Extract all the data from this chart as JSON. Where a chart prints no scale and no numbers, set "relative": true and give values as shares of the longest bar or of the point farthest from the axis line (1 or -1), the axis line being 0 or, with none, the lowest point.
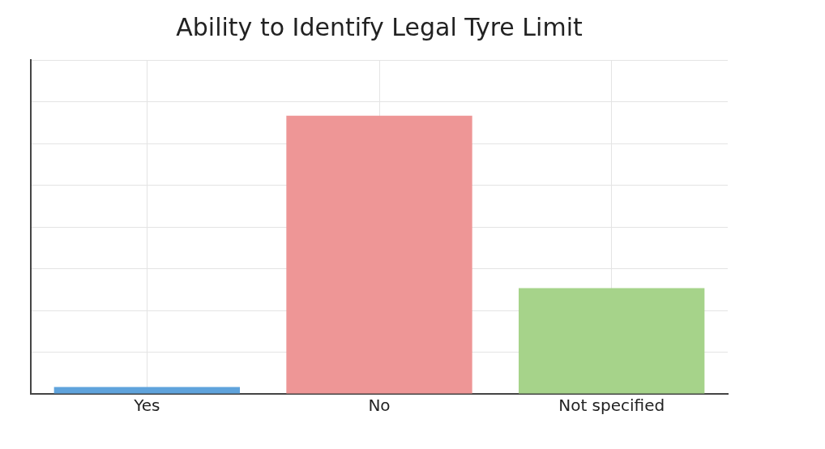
{
  "chart_data": {
    "type": "bar",
    "title": "Ability to Identify Legal Tyre Limit",
    "categories": [
      "Yes",
      "No",
      "Not specified"
    ],
    "values": [
      0.025,
      1,
      0.38
    ],
    "colors": [
      "#5fa3dc",
      "#ee9696",
      "#a6d38a"
    ],
    "relative": true,
    "grid": true,
    "tick_labels": "x",
    "legend": false
  }
}
